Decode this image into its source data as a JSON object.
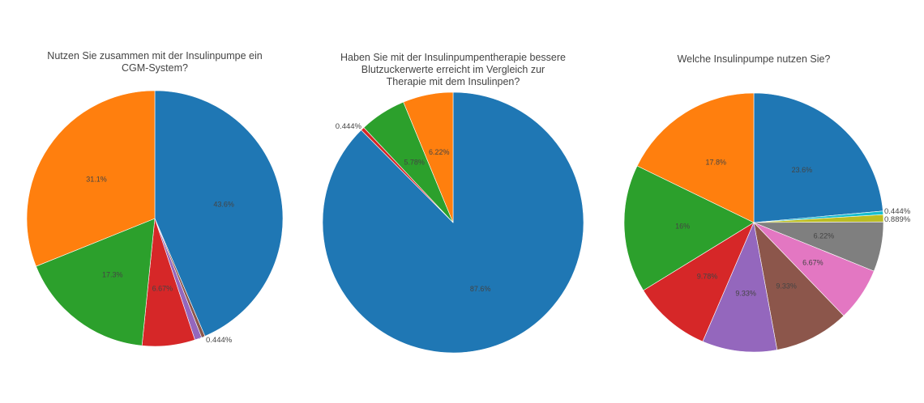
{
  "chart_data": [
    {
      "type": "pie",
      "title_lines": [
        "Nutzen Sie zusammen mit der Insulinpumpe ein",
        "CGM-System?"
      ],
      "labels": [
        "43.6%",
        "0.444%",
        "",
        "6.67%",
        "17.3%",
        "31.1%"
      ],
      "values": [
        43.6,
        0.444,
        0.889,
        6.67,
        17.3,
        31.1
      ],
      "colors": [
        "#1f77b4",
        "#8c564b",
        "#9467bd",
        "#d62728",
        "#2ca02c",
        "#ff7f0e"
      ],
      "legend": "none"
    },
    {
      "type": "pie",
      "title_lines": [
        "Haben Sie mit der Insulinpumpentherapie bessere",
        "Blutzuckerwerte erreicht im Vergleich zur",
        "Therapie mit dem Insulinpen?"
      ],
      "labels": [
        "87.6%",
        "0.444%",
        "5.78%",
        "6.22%"
      ],
      "values": [
        87.6,
        0.444,
        5.78,
        6.22
      ],
      "colors": [
        "#1f77b4",
        "#d62728",
        "#2ca02c",
        "#ff7f0e"
      ],
      "legend": "none"
    },
    {
      "type": "pie",
      "title_lines": [
        "Welche Insulinpumpe nutzen Sie?"
      ],
      "labels": [
        "23.6%",
        "0.444%",
        "0.889%",
        "6.22%",
        "6.67%",
        "9.33%",
        "9.33%",
        "9.78%",
        "16%",
        "17.8%"
      ],
      "values": [
        23.6,
        0.444,
        0.889,
        6.22,
        6.67,
        9.33,
        9.33,
        9.78,
        16,
        17.8
      ],
      "colors": [
        "#1f77b4",
        "#17becf",
        "#bcbd22",
        "#7f7f7f",
        "#e377c2",
        "#8c564b",
        "#9467bd",
        "#d62728",
        "#2ca02c",
        "#ff7f0e"
      ],
      "legend": "none"
    }
  ]
}
